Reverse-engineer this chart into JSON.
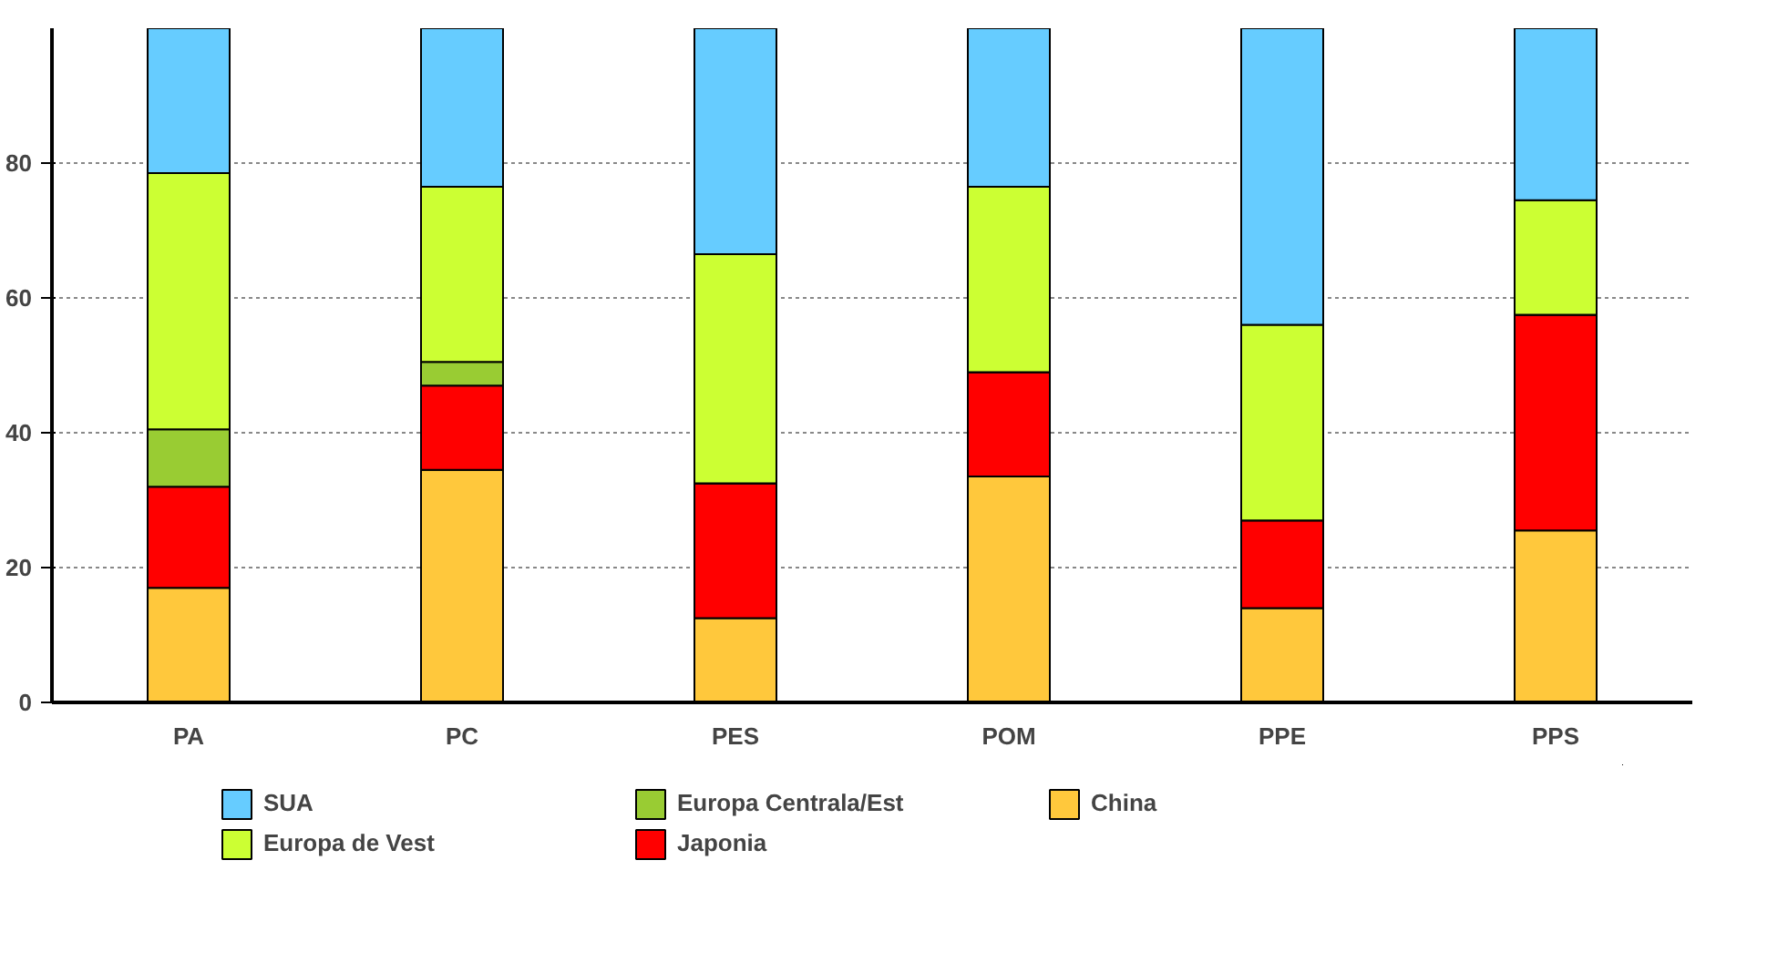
{
  "chart_data": {
    "type": "bar",
    "stacked": true,
    "categories": [
      "PA",
      "PC",
      "PES",
      "POM",
      "PPE",
      "PPS"
    ],
    "series": [
      {
        "name": "China",
        "color": "#ffc83c",
        "values": [
          17,
          34.5,
          12.5,
          33.5,
          14,
          25.5
        ]
      },
      {
        "name": "Japonia",
        "color": "#ff0000",
        "values": [
          15,
          12.5,
          20,
          15.5,
          13,
          32
        ]
      },
      {
        "name": "Europa Centrala/Est",
        "color": "#99cc33",
        "values": [
          8.5,
          3.5,
          0,
          0,
          0,
          0
        ]
      },
      {
        "name": "Europa de Vest",
        "color": "#ccff33",
        "values": [
          38,
          26,
          34,
          27.5,
          29,
          17
        ]
      },
      {
        "name": "SUA",
        "color": "#66ccff",
        "values": [
          21.5,
          23.5,
          33.5,
          23.5,
          44,
          25.5
        ]
      }
    ],
    "ylim": [
      0,
      100
    ],
    "yticks": [
      0,
      20,
      40,
      60,
      80
    ],
    "grid": "y",
    "legend": "bottom"
  }
}
